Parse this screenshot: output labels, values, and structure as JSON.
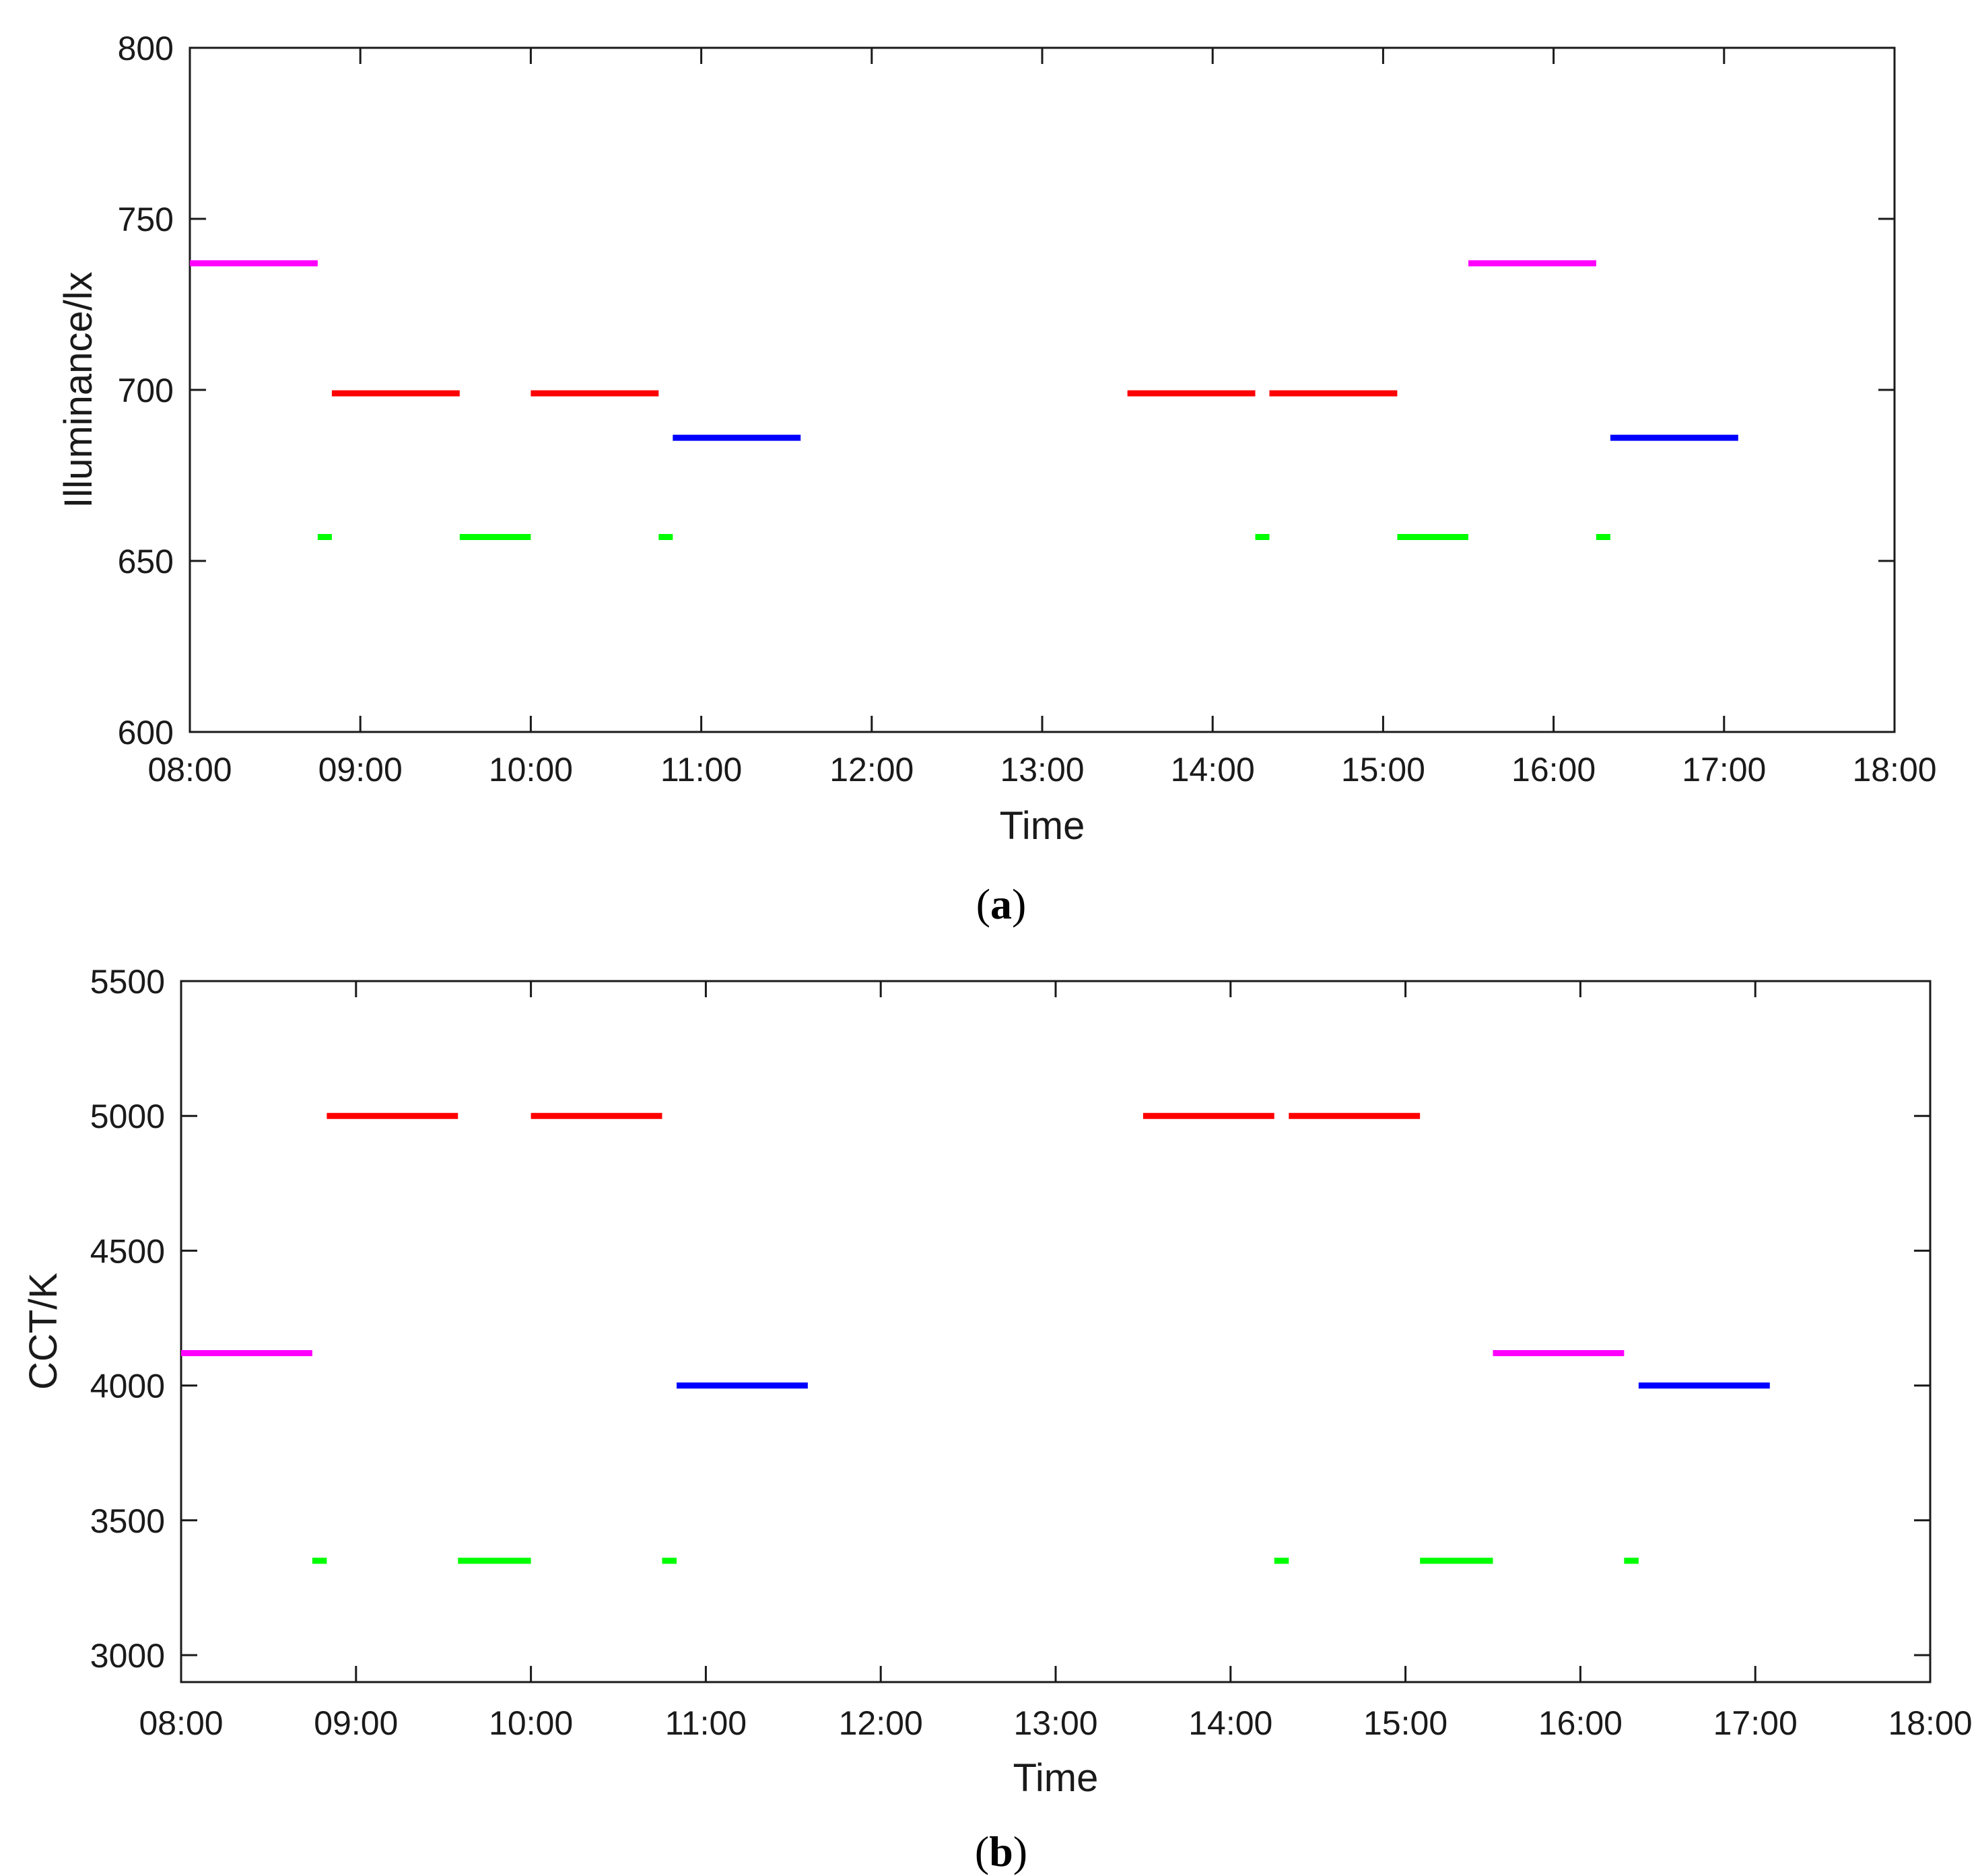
{
  "chart_data": [
    {
      "type": "line",
      "panel": "a",
      "caption_letter": "a",
      "xlabel": "Time",
      "ylabel": "Illuminance/lx",
      "xlim_hours": [
        8,
        18
      ],
      "ylim": [
        600,
        800
      ],
      "x_ticks": [
        "08:00",
        "09:00",
        "10:00",
        "11:00",
        "12:00",
        "13:00",
        "14:00",
        "15:00",
        "16:00",
        "17:00",
        "18:00"
      ],
      "y_ticks": [
        600,
        650,
        700,
        750,
        800
      ],
      "segments": [
        {
          "start": 8.0,
          "end": 8.75,
          "value": 737,
          "color": "#ff00ff"
        },
        {
          "start": 8.75,
          "end": 8.833,
          "value": 657,
          "color": "#00ff00"
        },
        {
          "start": 8.833,
          "end": 9.583,
          "value": 699,
          "color": "#ff0000"
        },
        {
          "start": 9.583,
          "end": 10.0,
          "value": 657,
          "color": "#00ff00"
        },
        {
          "start": 10.0,
          "end": 10.75,
          "value": 699,
          "color": "#ff0000"
        },
        {
          "start": 10.75,
          "end": 10.833,
          "value": 657,
          "color": "#00ff00"
        },
        {
          "start": 10.833,
          "end": 11.583,
          "value": 686,
          "color": "#0000ff"
        },
        {
          "start": 13.5,
          "end": 14.25,
          "value": 699,
          "color": "#ff0000"
        },
        {
          "start": 14.25,
          "end": 14.333,
          "value": 657,
          "color": "#00ff00"
        },
        {
          "start": 14.333,
          "end": 15.083,
          "value": 699,
          "color": "#ff0000"
        },
        {
          "start": 15.083,
          "end": 15.5,
          "value": 657,
          "color": "#00ff00"
        },
        {
          "start": 15.5,
          "end": 16.25,
          "value": 737,
          "color": "#ff00ff"
        },
        {
          "start": 16.25,
          "end": 16.333,
          "value": 657,
          "color": "#00ff00"
        },
        {
          "start": 16.333,
          "end": 17.083,
          "value": 686,
          "color": "#0000ff"
        }
      ]
    },
    {
      "type": "line",
      "panel": "b",
      "caption_letter": "b",
      "xlabel": "Time",
      "ylabel": "CCT/K",
      "xlim_hours": [
        8,
        18
      ],
      "ylim": [
        2900,
        5500
      ],
      "x_ticks": [
        "08:00",
        "09:00",
        "10:00",
        "11:00",
        "12:00",
        "13:00",
        "14:00",
        "15:00",
        "16:00",
        "17:00",
        "18:00"
      ],
      "y_ticks": [
        3000,
        3500,
        4000,
        4500,
        5000,
        5500
      ],
      "segments": [
        {
          "start": 8.0,
          "end": 8.75,
          "value": 4120,
          "color": "#ff00ff"
        },
        {
          "start": 8.75,
          "end": 8.833,
          "value": 3350,
          "color": "#00ff00"
        },
        {
          "start": 8.833,
          "end": 9.583,
          "value": 5000,
          "color": "#ff0000"
        },
        {
          "start": 9.583,
          "end": 10.0,
          "value": 3350,
          "color": "#00ff00"
        },
        {
          "start": 10.0,
          "end": 10.75,
          "value": 5000,
          "color": "#ff0000"
        },
        {
          "start": 10.75,
          "end": 10.833,
          "value": 3350,
          "color": "#00ff00"
        },
        {
          "start": 10.833,
          "end": 11.583,
          "value": 4000,
          "color": "#0000ff"
        },
        {
          "start": 13.5,
          "end": 14.25,
          "value": 5000,
          "color": "#ff0000"
        },
        {
          "start": 14.25,
          "end": 14.333,
          "value": 3350,
          "color": "#00ff00"
        },
        {
          "start": 14.333,
          "end": 15.083,
          "value": 5000,
          "color": "#ff0000"
        },
        {
          "start": 15.083,
          "end": 15.5,
          "value": 3350,
          "color": "#00ff00"
        },
        {
          "start": 15.5,
          "end": 16.25,
          "value": 4120,
          "color": "#ff00ff"
        },
        {
          "start": 16.25,
          "end": 16.333,
          "value": 3350,
          "color": "#00ff00"
        },
        {
          "start": 16.333,
          "end": 17.083,
          "value": 4000,
          "color": "#0000ff"
        }
      ]
    }
  ]
}
